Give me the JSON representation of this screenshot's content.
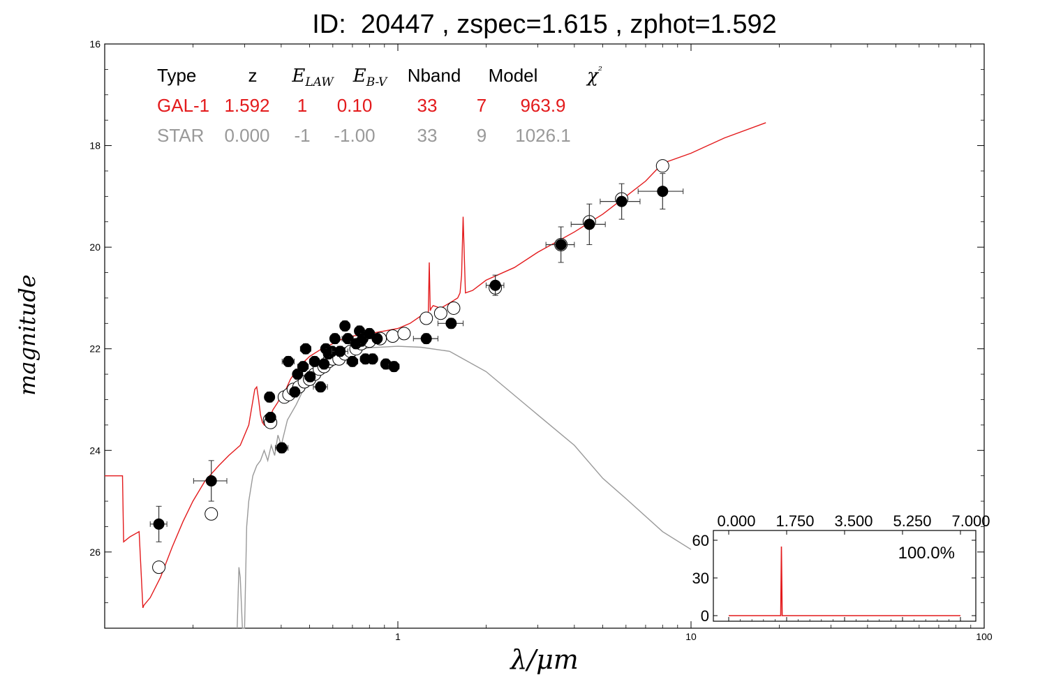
{
  "chart_data": {
    "type": "scatter",
    "title": "ID:  20447 , zspec=1.615 , zphot=1.592",
    "xlabel": "λ/μm",
    "ylabel": "magnitude",
    "xscale": "log",
    "xlim": [
      0.1,
      100
    ],
    "ylim": [
      27.5,
      16
    ],
    "y_inverted": true,
    "x_ticks": [
      "1",
      "10",
      "100"
    ],
    "y_ticks": [
      "16",
      "18",
      "20",
      "22",
      "24",
      "26"
    ],
    "fit_table": {
      "headers": [
        "Type",
        "z",
        "E_LAW",
        "E_B-V",
        "Nband",
        "Model",
        "χ²"
      ],
      "rows": [
        {
          "name": "GAL-1",
          "color": "#e31a1c",
          "values": [
            "GAL-1",
            "1.592",
            "1",
            "0.10",
            "33",
            "7",
            "963.9"
          ]
        },
        {
          "name": "STAR",
          "color": "#999999",
          "values": [
            "STAR",
            "0.000",
            "-1",
            "-1.00",
            "33",
            "9",
            "1026.1"
          ]
        }
      ]
    },
    "series": [
      {
        "name": "GAL-1",
        "kind": "line",
        "color": "#e31a1c",
        "x": [
          0.1,
          0.115,
          0.116,
          0.122,
          0.131,
          0.135,
          0.136,
          0.143,
          0.155,
          0.17,
          0.185,
          0.2,
          0.22,
          0.245,
          0.265,
          0.29,
          0.31,
          0.325,
          0.33,
          0.335,
          0.34,
          0.345,
          0.35,
          0.355,
          0.365,
          0.375,
          0.39,
          0.4,
          0.405,
          0.415,
          0.43,
          0.46,
          0.5,
          0.55,
          0.6,
          0.65,
          0.7,
          0.8,
          0.9,
          1.0,
          1.1,
          1.2,
          1.27,
          1.28,
          1.29,
          1.3,
          1.32,
          1.4,
          1.5,
          1.6,
          1.63,
          1.65,
          1.67,
          1.7,
          1.8,
          2.0,
          2.5,
          3.0,
          4.0,
          5.0,
          6.0,
          7.0,
          8.0,
          10.0,
          13.0,
          18.0
        ],
        "y": [
          24.5,
          24.5,
          25.8,
          25.7,
          25.6,
          27.1,
          27.05,
          26.9,
          26.5,
          25.9,
          25.4,
          25.0,
          24.6,
          24.3,
          24.1,
          23.9,
          23.5,
          22.8,
          22.75,
          23.0,
          23.3,
          23.45,
          23.5,
          23.4,
          23.35,
          23.2,
          23.05,
          22.9,
          22.95,
          22.8,
          22.6,
          22.35,
          22.15,
          22.0,
          21.9,
          21.8,
          21.75,
          21.7,
          21.65,
          21.6,
          21.5,
          21.35,
          21.3,
          20.3,
          21.25,
          21.2,
          21.15,
          21.2,
          21.1,
          21.0,
          20.9,
          20.55,
          19.4,
          20.9,
          20.85,
          20.65,
          20.4,
          20.1,
          19.7,
          19.35,
          19.0,
          18.7,
          18.35,
          18.15,
          17.85,
          17.55
        ]
      },
      {
        "name": "STAR",
        "kind": "line",
        "color": "#999999",
        "x": [
          0.283,
          0.287,
          0.29,
          0.295,
          0.3,
          0.305,
          0.31,
          0.32,
          0.33,
          0.34,
          0.35,
          0.36,
          0.37,
          0.38,
          0.39,
          0.4,
          0.42,
          0.45,
          0.5,
          0.55,
          0.6,
          0.7,
          0.8,
          1.0,
          1.2,
          1.5,
          2.0,
          3.0,
          4.0,
          5.0,
          6.0,
          8.0,
          10.0
        ],
        "y": [
          27.6,
          26.3,
          26.5,
          27.6,
          27.6,
          25.5,
          25.0,
          24.5,
          24.3,
          24.2,
          24.0,
          24.2,
          23.9,
          24.1,
          23.7,
          23.9,
          23.4,
          23.1,
          22.55,
          22.3,
          22.15,
          22.05,
          21.98,
          21.95,
          21.97,
          22.05,
          22.45,
          23.3,
          23.9,
          24.55,
          24.95,
          25.6,
          25.95
        ]
      },
      {
        "name": "observed",
        "kind": "points",
        "marker": "filled",
        "x": [
          0.153,
          0.231,
          0.365,
          0.368,
          0.402,
          0.423,
          0.445,
          0.455,
          0.475,
          0.485,
          0.502,
          0.52,
          0.545,
          0.56,
          0.568,
          0.58,
          0.596,
          0.61,
          0.635,
          0.66,
          0.675,
          0.7,
          0.72,
          0.74,
          0.75,
          0.76,
          0.775,
          0.8,
          0.82,
          0.85,
          0.91,
          0.97,
          1.25,
          1.52,
          2.15,
          3.6,
          4.5,
          5.8,
          8.0
        ],
        "xerr": [
          0.01,
          0.03,
          0.01,
          0.01,
          0.02,
          0.02,
          0.01,
          0.01,
          0.02,
          0.02,
          0.02,
          0.02,
          0.03,
          0.01,
          0.02,
          0.01,
          0.02,
          0.02,
          0.04,
          0.02,
          0.03,
          0.03,
          0.03,
          0.02,
          0.02,
          0.02,
          0.03,
          0.03,
          0.02,
          0.03,
          0.03,
          0.04,
          0.12,
          0.15,
          0.15,
          0.4,
          0.6,
          0.9,
          1.4
        ],
        "y": [
          25.45,
          24.6,
          22.95,
          23.35,
          23.95,
          22.25,
          22.85,
          22.5,
          22.35,
          22.0,
          22.55,
          22.25,
          22.75,
          22.3,
          22.0,
          22.1,
          22.05,
          21.8,
          22.05,
          21.55,
          21.8,
          22.25,
          21.9,
          21.65,
          21.85,
          21.8,
          22.2,
          21.7,
          22.2,
          21.8,
          22.3,
          22.35,
          21.8,
          21.5,
          20.75,
          19.95,
          19.55,
          19.1,
          18.9
        ],
        "yerr": [
          0.35,
          0.4,
          0.1,
          0.1,
          0.1,
          0.1,
          0.1,
          0.1,
          0.1,
          0.1,
          0.1,
          0.1,
          0.1,
          0.1,
          0.1,
          0.1,
          0.1,
          0.1,
          0.1,
          0.1,
          0.1,
          0.1,
          0.1,
          0.1,
          0.1,
          0.1,
          0.1,
          0.1,
          0.1,
          0.1,
          0.1,
          0.1,
          0.1,
          0.1,
          0.2,
          0.35,
          0.4,
          0.35,
          0.35
        ]
      },
      {
        "name": "model",
        "kind": "points",
        "marker": "open",
        "x": [
          0.153,
          0.231,
          0.365,
          0.368,
          0.41,
          0.425,
          0.44,
          0.46,
          0.48,
          0.5,
          0.52,
          0.54,
          0.56,
          0.58,
          0.6,
          0.63,
          0.66,
          0.69,
          0.72,
          0.75,
          0.8,
          0.87,
          0.96,
          1.05,
          1.25,
          1.4,
          1.55,
          2.15,
          3.6,
          4.5,
          5.8,
          8.0
        ],
        "y": [
          26.3,
          25.25,
          23.4,
          23.45,
          22.95,
          22.9,
          22.8,
          22.75,
          22.65,
          22.6,
          22.5,
          22.4,
          22.35,
          22.25,
          22.2,
          22.2,
          22.1,
          22.05,
          22.0,
          21.9,
          21.85,
          21.8,
          21.75,
          21.7,
          21.4,
          21.3,
          21.2,
          20.8,
          19.95,
          19.5,
          19.05,
          18.4
        ]
      }
    ],
    "inset": {
      "type": "line",
      "x_ticks": [
        "0.000",
        "1.750",
        "3.500",
        "5.250",
        "7.000"
      ],
      "y_ticks": [
        "0",
        "30",
        "60"
      ],
      "xlim": [
        0,
        7
      ],
      "ylim": [
        -8,
        65
      ],
      "annotation": "100.0%",
      "series": [
        {
          "color": "#e31a1c",
          "x": [
            0,
            1.45,
            1.57,
            1.592,
            1.615,
            1.74,
            7.0
          ],
          "y": [
            0,
            0,
            0,
            55,
            0,
            0,
            0
          ]
        }
      ]
    }
  }
}
